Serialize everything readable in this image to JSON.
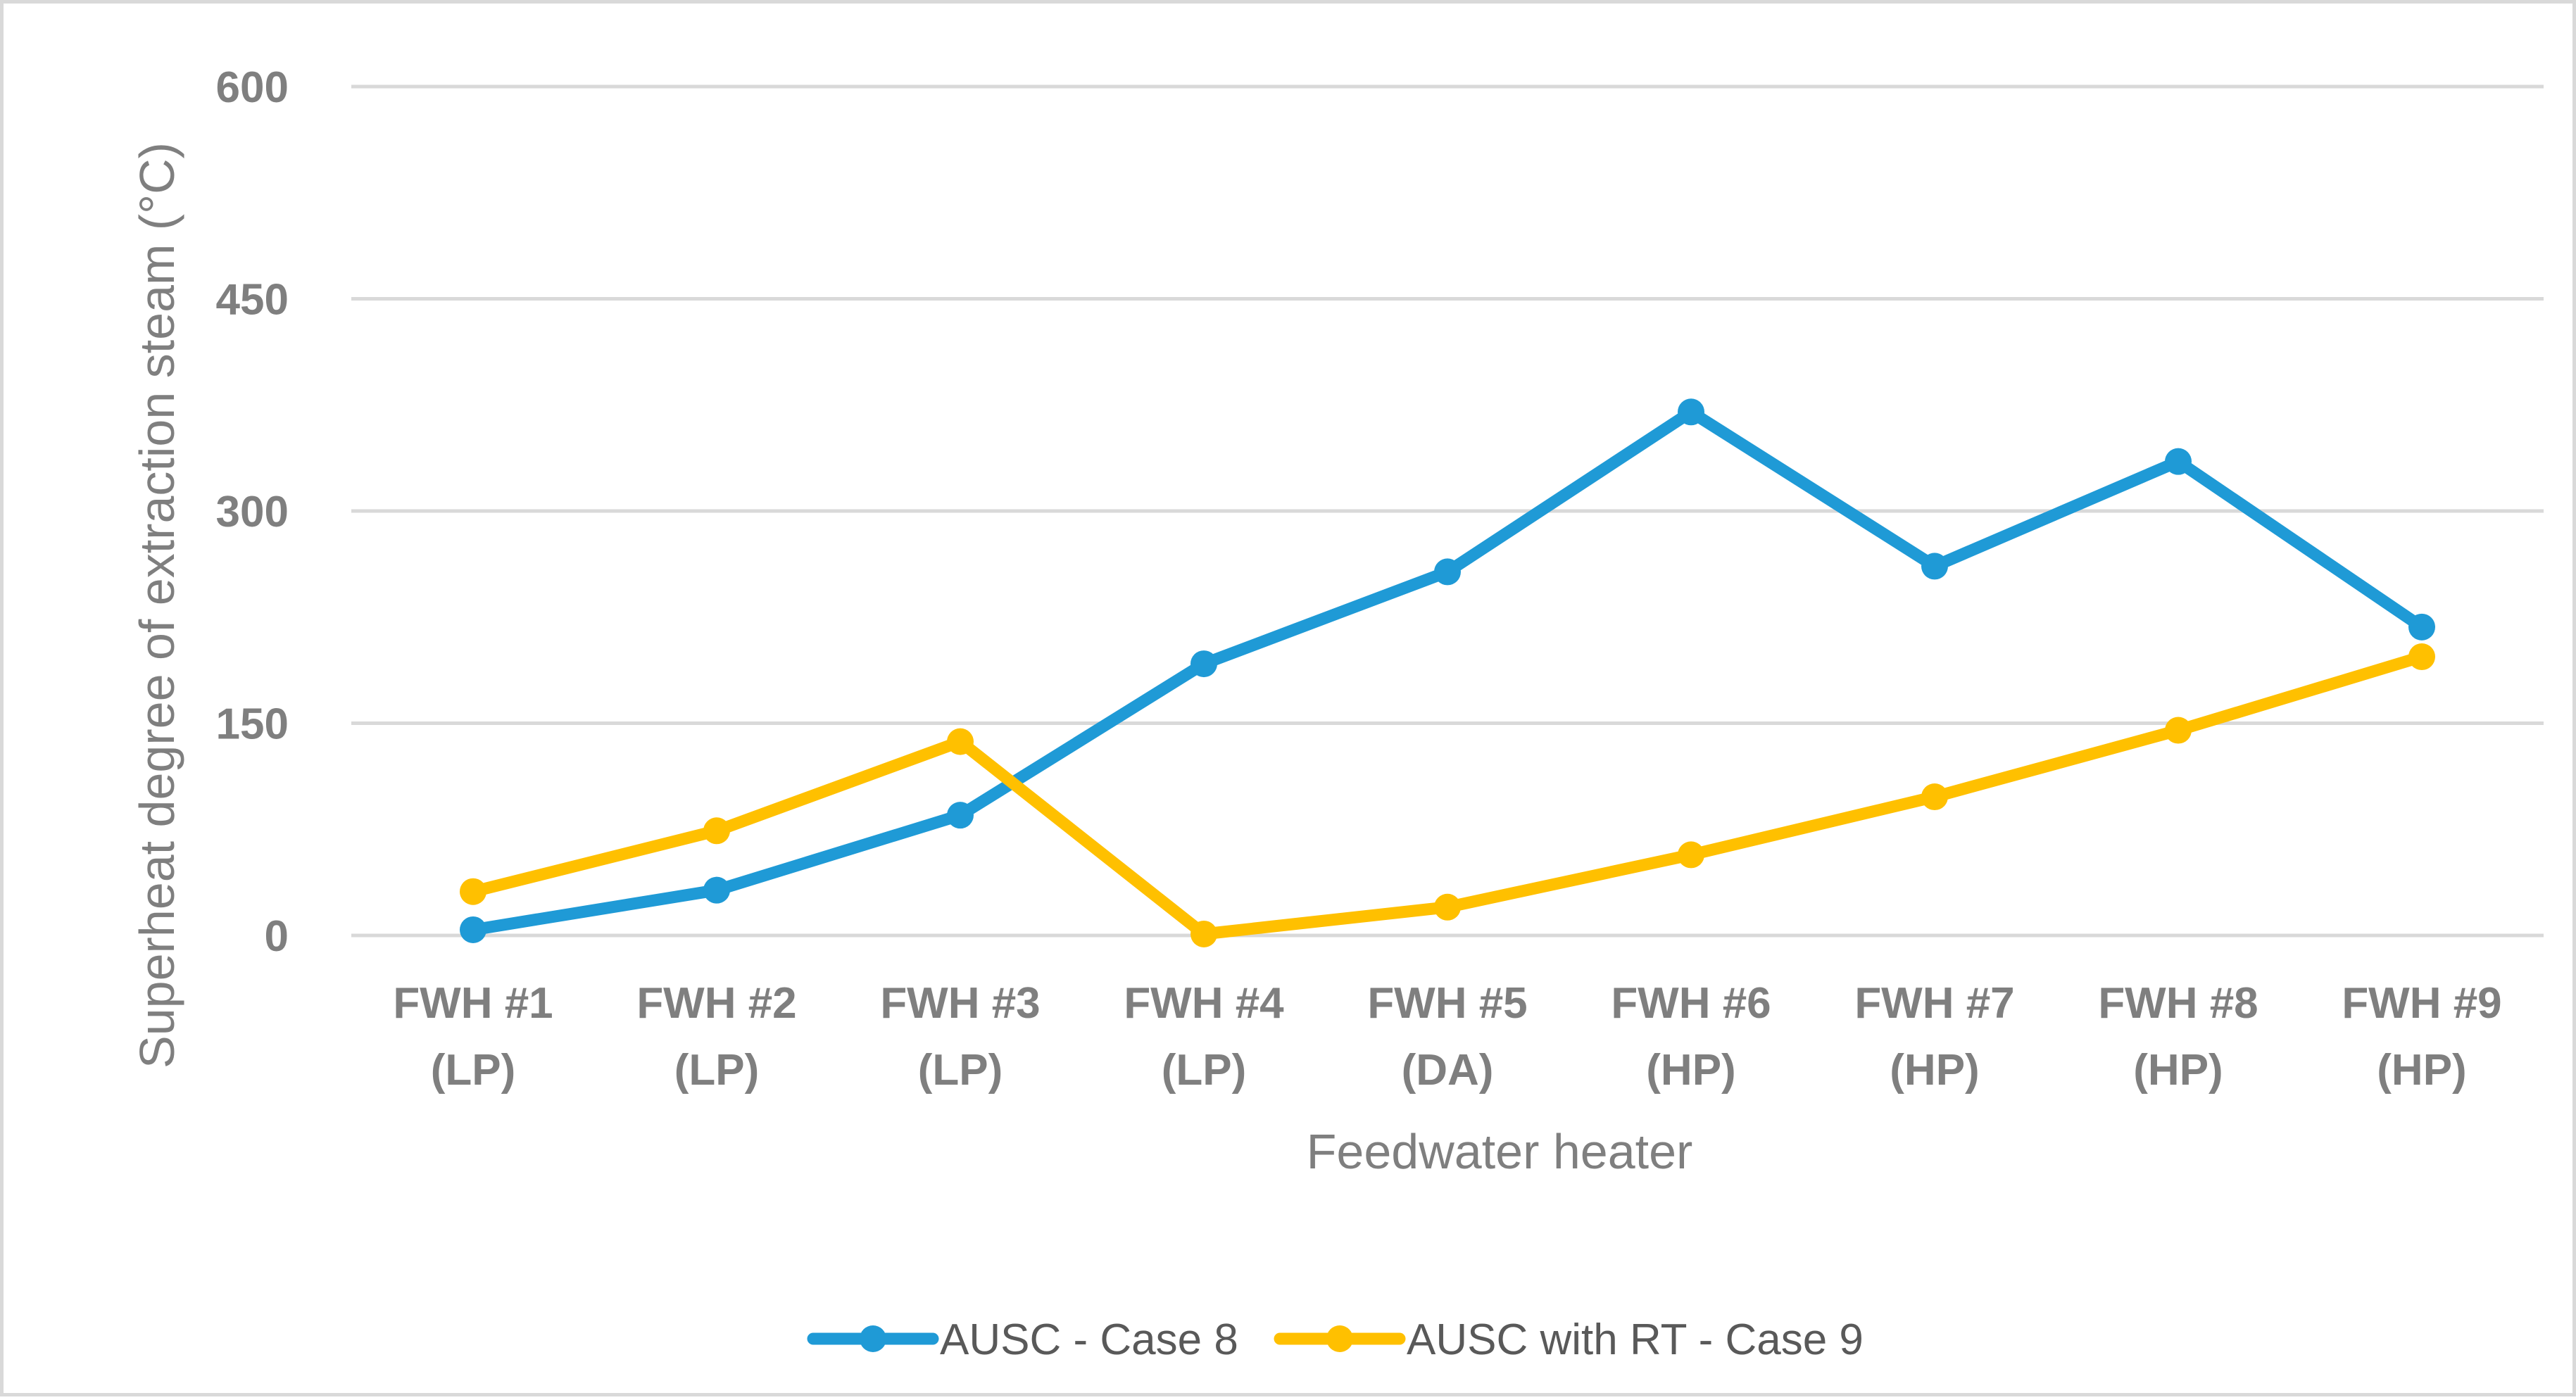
{
  "chart_data": {
    "type": "line",
    "title": "",
    "xlabel": "Feedwater heater",
    "ylabel": "Superheat degree of extraction steam (°C)",
    "ylim": [
      0,
      600
    ],
    "yticks": [
      0,
      150,
      300,
      450,
      600
    ],
    "grid": true,
    "legend_position": "bottom",
    "categories": [
      [
        "FWH #1",
        "(LP)"
      ],
      [
        "FWH #2",
        "(LP)"
      ],
      [
        "FWH #3",
        "(LP)"
      ],
      [
        "FWH #4",
        "(LP)"
      ],
      [
        "FWH #5",
        "(DA)"
      ],
      [
        "FWH #6",
        "(HP)"
      ],
      [
        "FWH #7",
        "(HP)"
      ],
      [
        "FWH #8",
        "(HP)"
      ],
      [
        "FWH #9",
        "(HP)"
      ]
    ],
    "series": [
      {
        "name": "AUSC - Case 8",
        "color": "#1f9ad6",
        "values": [
          4,
          32,
          85,
          192,
          257,
          370,
          261,
          335,
          218
        ]
      },
      {
        "name": "AUSC with RT - Case 9",
        "color": "#ffc000",
        "values": [
          31,
          74,
          137,
          1,
          20,
          57,
          98,
          145,
          197
        ]
      }
    ]
  }
}
